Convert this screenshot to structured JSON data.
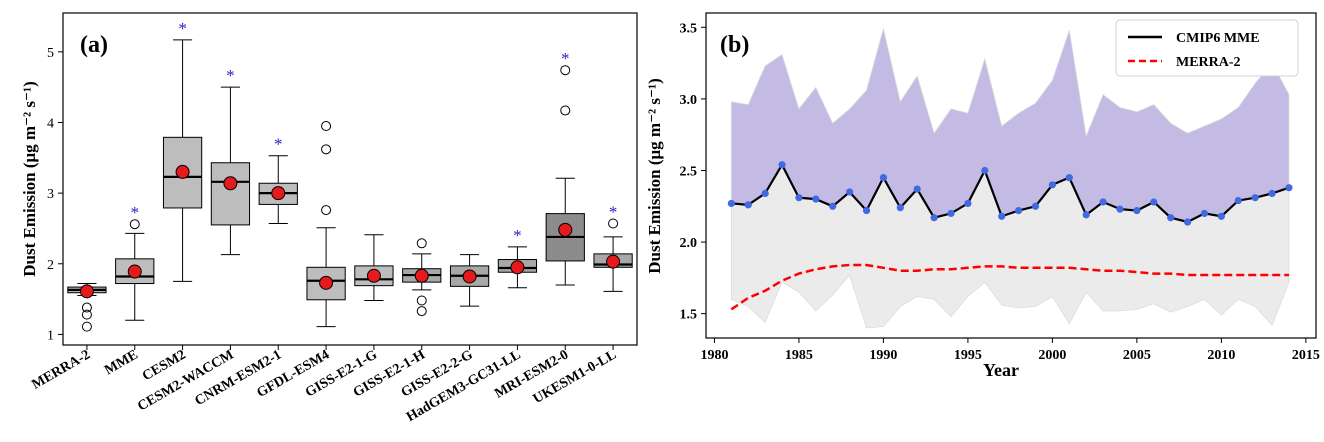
{
  "chart_data": [
    {
      "type": "box",
      "panel_label": "(a)",
      "ylabel": "Dust Emission (μg m⁻² s⁻¹)",
      "ylim": [
        0.85,
        5.55
      ],
      "yticks": [
        1,
        2,
        3,
        4,
        5
      ],
      "grid": false,
      "categories": [
        "MERRA-2",
        "MME",
        "CESM2",
        "CESM2-WACCM",
        "CNRM-ESM2-1",
        "GFDL-ESM4",
        "GISS-E2-1-G",
        "GISS-E2-1-H",
        "GISS-E2-2-G",
        "HadGEM3-GC31-LL",
        "MRI-ESM2-0",
        "UKESM1-0-LL"
      ],
      "boxes": [
        {
          "whislo": 1.55,
          "q1": 1.59,
          "med": 1.63,
          "q3": 1.67,
          "whishi": 1.72,
          "mean": 1.61,
          "fliers": [
            1.38,
            1.28,
            1.11
          ],
          "star": false,
          "color": "#b5b5b5"
        },
        {
          "whislo": 1.2,
          "q1": 1.72,
          "med": 1.82,
          "q3": 2.07,
          "whishi": 2.43,
          "mean": 1.89,
          "fliers": [
            2.56
          ],
          "star": true,
          "color": "#bdbdbd"
        },
        {
          "whislo": 1.75,
          "q1": 2.79,
          "med": 3.23,
          "q3": 3.79,
          "whishi": 5.17,
          "mean": 3.3,
          "fliers": [],
          "star": true,
          "color": "#bdbdbd"
        },
        {
          "whislo": 2.13,
          "q1": 2.55,
          "med": 3.16,
          "q3": 3.43,
          "whishi": 4.5,
          "mean": 3.14,
          "fliers": [],
          "star": true,
          "color": "#bdbdbd"
        },
        {
          "whislo": 2.57,
          "q1": 2.84,
          "med": 3.0,
          "q3": 3.14,
          "whishi": 3.53,
          "mean": 3.0,
          "fliers": [],
          "star": true,
          "color": "#bdbdbd"
        },
        {
          "whislo": 1.11,
          "q1": 1.49,
          "med": 1.76,
          "q3": 1.95,
          "whishi": 2.51,
          "mean": 1.73,
          "fliers": [
            2.76,
            3.62,
            3.95
          ],
          "star": false,
          "color": "#bdbdbd"
        },
        {
          "whislo": 1.48,
          "q1": 1.69,
          "med": 1.78,
          "q3": 1.97,
          "whishi": 2.41,
          "mean": 1.83,
          "fliers": [],
          "star": false,
          "color": "#bdbdbd"
        },
        {
          "whislo": 1.63,
          "q1": 1.74,
          "med": 1.84,
          "q3": 1.93,
          "whishi": 2.14,
          "mean": 1.83,
          "fliers": [
            2.29,
            1.48,
            1.33
          ],
          "star": false,
          "color": "#a8a8a8"
        },
        {
          "whislo": 1.4,
          "q1": 1.68,
          "med": 1.83,
          "q3": 1.97,
          "whishi": 2.13,
          "mean": 1.82,
          "fliers": [],
          "star": false,
          "color": "#a8a8a8"
        },
        {
          "whislo": 1.66,
          "q1": 1.88,
          "med": 1.94,
          "q3": 2.06,
          "whishi": 2.24,
          "mean": 1.95,
          "fliers": [],
          "star": true,
          "color": "#a8a8a8"
        },
        {
          "whislo": 1.7,
          "q1": 2.04,
          "med": 2.38,
          "q3": 2.71,
          "whishi": 3.21,
          "mean": 2.48,
          "fliers": [
            4.17,
            4.74
          ],
          "star": true,
          "color": "#8c8c8c"
        },
        {
          "whislo": 1.61,
          "q1": 1.95,
          "med": 1.99,
          "q3": 2.14,
          "whishi": 2.38,
          "mean": 2.03,
          "fliers": [
            2.57
          ],
          "star": true,
          "color": "#a8a8a8"
        }
      ],
      "colors": {
        "mean_marker": "#e41a1c",
        "star": "#1f1fbf",
        "median": "#000000"
      }
    },
    {
      "type": "line",
      "panel_label": "(b)",
      "xlabel": "Year",
      "ylabel": "Dust Emission (μg m⁻² s⁻¹)",
      "xlim": [
        1979.5,
        2015.6
      ],
      "ylim": [
        1.33,
        3.6
      ],
      "xticks": [
        1980,
        1985,
        1990,
        1995,
        2000,
        2005,
        2010,
        2015
      ],
      "yticks": [
        1.5,
        2.0,
        2.5,
        3.0,
        3.5
      ],
      "grid": false,
      "legend_position": "top-right",
      "x": [
        1981,
        1982,
        1983,
        1984,
        1985,
        1986,
        1987,
        1988,
        1989,
        1990,
        1991,
        1992,
        1993,
        1994,
        1995,
        1996,
        1997,
        1998,
        1999,
        2000,
        2001,
        2002,
        2003,
        2004,
        2005,
        2006,
        2007,
        2008,
        2009,
        2010,
        2011,
        2012,
        2013,
        2014
      ],
      "series": [
        {
          "name": "CMIP6 MME",
          "style": "solid",
          "color": "#000000",
          "marker_color": "#4169e1",
          "values": [
            2.27,
            2.26,
            2.34,
            2.54,
            2.31,
            2.3,
            2.25,
            2.35,
            2.22,
            2.45,
            2.24,
            2.37,
            2.17,
            2.2,
            2.27,
            2.5,
            2.18,
            2.22,
            2.25,
            2.4,
            2.45,
            2.19,
            2.28,
            2.23,
            2.22,
            2.28,
            2.17,
            2.14,
            2.2,
            2.18,
            2.29,
            2.31,
            2.34,
            2.38
          ]
        },
        {
          "name": "MERRA-2",
          "style": "dashed",
          "color": "#ff0000",
          "values": [
            1.53,
            1.61,
            1.66,
            1.73,
            1.78,
            1.81,
            1.83,
            1.84,
            1.84,
            1.82,
            1.8,
            1.8,
            1.81,
            1.81,
            1.82,
            1.83,
            1.83,
            1.82,
            1.82,
            1.82,
            1.82,
            1.81,
            1.8,
            1.8,
            1.79,
            1.78,
            1.78,
            1.77,
            1.77,
            1.77,
            1.77,
            1.77,
            1.77,
            1.77
          ]
        }
      ],
      "bands": {
        "upper": [
          2.98,
          2.96,
          3.23,
          3.31,
          2.93,
          3.08,
          2.83,
          2.93,
          3.06,
          3.49,
          2.98,
          3.16,
          2.76,
          2.93,
          2.9,
          3.28,
          2.81,
          2.9,
          2.97,
          3.13,
          3.48,
          2.74,
          3.03,
          2.94,
          2.91,
          2.96,
          2.83,
          2.76,
          2.81,
          2.86,
          2.94,
          3.11,
          3.25,
          3.03
        ],
        "lower": [
          1.6,
          1.55,
          1.44,
          1.72,
          1.65,
          1.52,
          1.63,
          1.77,
          1.4,
          1.41,
          1.55,
          1.62,
          1.6,
          1.48,
          1.62,
          1.72,
          1.56,
          1.54,
          1.55,
          1.62,
          1.43,
          1.65,
          1.52,
          1.52,
          1.53,
          1.57,
          1.51,
          1.55,
          1.6,
          1.49,
          1.6,
          1.55,
          1.42,
          1.72
        ],
        "upper_color": "#c3bbe3",
        "lower_color": "#ebebeb"
      }
    }
  ]
}
